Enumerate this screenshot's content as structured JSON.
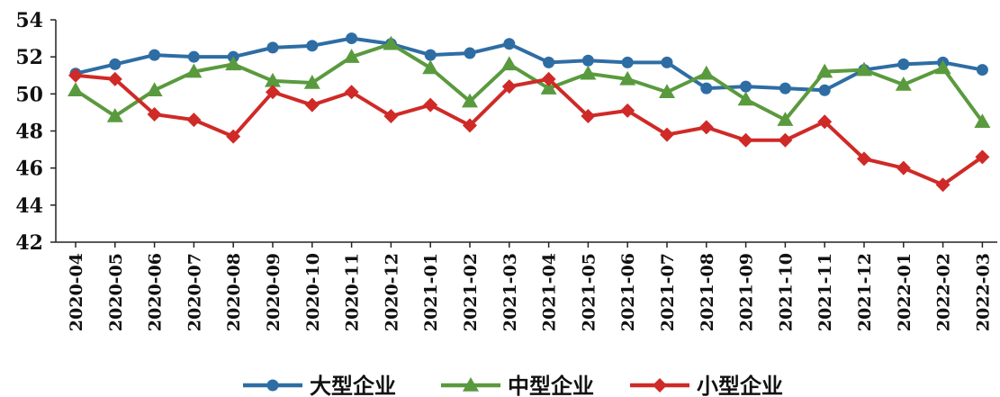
{
  "chart_data": {
    "type": "line",
    "title": "",
    "xlabel": "",
    "ylabel": "",
    "ylim": [
      42,
      54
    ],
    "yticks": [
      42,
      44,
      46,
      48,
      50,
      52,
      54
    ],
    "grid": false,
    "legend_position": "bottom",
    "categories": [
      "2020-04",
      "2020-05",
      "2020-06",
      "2020-07",
      "2020-08",
      "2020-09",
      "2020-10",
      "2020-11",
      "2020-12",
      "2021-01",
      "2021-02",
      "2021-03",
      "2021-04",
      "2021-05",
      "2021-06",
      "2021-07",
      "2021-08",
      "2021-09",
      "2021-10",
      "2021-11",
      "2021-12",
      "2022-01",
      "2022-02",
      "2022-03"
    ],
    "series": [
      {
        "name": "大型企业",
        "color": "#2e6da4",
        "marker": "circle",
        "values": [
          51.1,
          51.6,
          52.1,
          52.0,
          52.0,
          52.5,
          52.6,
          53.0,
          52.7,
          52.1,
          52.2,
          52.7,
          51.7,
          51.8,
          51.7,
          51.7,
          50.3,
          50.4,
          50.3,
          50.2,
          51.3,
          51.6,
          51.7,
          51.3
        ]
      },
      {
        "name": "中型企业",
        "color": "#5a9a3e",
        "marker": "triangle",
        "values": [
          50.2,
          48.8,
          50.2,
          51.2,
          51.6,
          50.7,
          50.6,
          52.0,
          52.7,
          51.4,
          49.6,
          51.6,
          50.3,
          51.1,
          50.8,
          50.1,
          51.1,
          49.7,
          48.6,
          51.2,
          51.3,
          50.5,
          51.4,
          48.5
        ]
      },
      {
        "name": "小型企业",
        "color": "#cf2a27",
        "marker": "diamond",
        "values": [
          51.0,
          50.8,
          48.9,
          48.6,
          47.7,
          50.1,
          49.4,
          50.1,
          48.8,
          49.4,
          48.3,
          50.4,
          50.8,
          48.8,
          49.1,
          47.8,
          48.2,
          47.5,
          47.5,
          48.5,
          46.5,
          46.0,
          45.1,
          46.6
        ]
      }
    ]
  }
}
